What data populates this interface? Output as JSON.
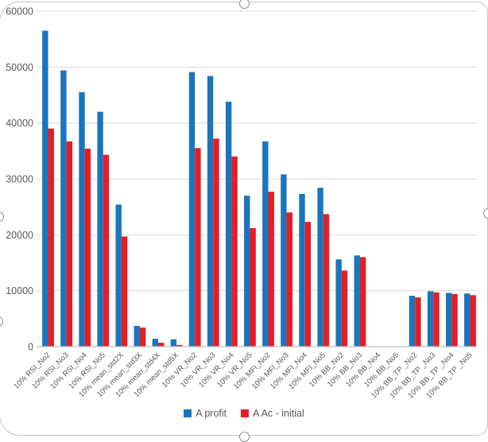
{
  "chart_data": {
    "type": "bar",
    "title": "",
    "xlabel": "",
    "ylabel": "",
    "ylim": [
      0,
      60000
    ],
    "ytick_step": 10000,
    "ytick_labels": [
      "0",
      "10000",
      "20000",
      "30000",
      "40000",
      "50000",
      "60000"
    ],
    "grid": true,
    "legend_position": "bottom",
    "categories": [
      "10% RSI_No2",
      "10% RSI_No3",
      "10% RSI_No4",
      "10% RSI_No5",
      "10% mean_std2X",
      "10% mean_std3X",
      "10% mean_std4X",
      "10% mean_std5X",
      "10% VR_No2",
      "10% VR_No3",
      "10% VR_No4",
      "10% VR_No5",
      "10% MFI_No2",
      "10% MFI_No3",
      "10% MFI_No4",
      "10% MFI_No5",
      "10% BB_No2",
      "10% BB_No3",
      "10% BB_No4",
      "10% BB_No5",
      "10% BB_TP _No2",
      "10% BB_TP _No3",
      "10% BB_TP _No4",
      "10% BB_TP _No5"
    ],
    "series": [
      {
        "name": "A profit",
        "color": "#1b75bc",
        "values": [
          56500,
          49400,
          45500,
          42000,
          25400,
          3700,
          1400,
          1300,
          49100,
          48400,
          43800,
          27000,
          36700,
          30800,
          27300,
          28400,
          15600,
          16300,
          0,
          0,
          9100,
          9900,
          9600,
          9500
        ]
      },
      {
        "name": "A Ac - initial",
        "color": "#e41e25",
        "values": [
          39000,
          36700,
          35400,
          34300,
          19700,
          3400,
          700,
          300,
          35500,
          37200,
          34000,
          21200,
          27700,
          24000,
          22300,
          23700,
          13600,
          16000,
          0,
          0,
          8800,
          9700,
          9400,
          9200
        ]
      }
    ]
  },
  "style": {
    "grid_color": "#d9d9d9",
    "axis_color": "#bfbfbf",
    "tick_label_color": "#595959"
  }
}
